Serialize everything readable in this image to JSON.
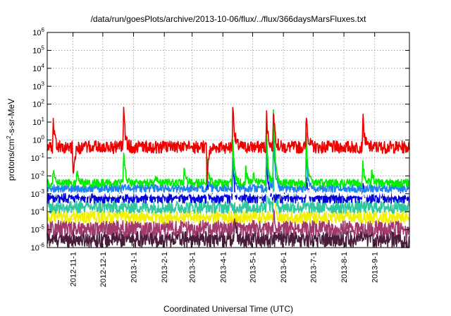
{
  "chart_data": {
    "type": "line",
    "title": "/data/run/goesPlots/archive/2013-10-06/flux/../flux/366daysMarsFluxes.txt",
    "xlabel": "Coordinated Universal Time (UTC)",
    "ylabel": {
      "pre": "protons/cm",
      "sup": "2",
      "post": "-s-sr-MeV"
    },
    "yscale": "log",
    "ylim": [
      1e-06,
      1000000.0
    ],
    "yticks": [
      {
        "base": "10",
        "exp": "-6"
      },
      {
        "base": "10",
        "exp": "-5"
      },
      {
        "base": "10",
        "exp": "-4"
      },
      {
        "base": "10",
        "exp": "-3"
      },
      {
        "base": "10",
        "exp": "-2"
      },
      {
        "base": "10",
        "exp": "-1"
      },
      {
        "base": "10",
        "exp": "0"
      },
      {
        "base": "10",
        "exp": "1"
      },
      {
        "base": "10",
        "exp": "2"
      },
      {
        "base": "10",
        "exp": "3"
      },
      {
        "base": "10",
        "exp": "4"
      },
      {
        "base": "10",
        "exp": "5"
      },
      {
        "base": "10",
        "exp": "6"
      }
    ],
    "xlim": [
      "2012-10-06",
      "2013-10-06"
    ],
    "xticks": [
      "2012-11-1",
      "2012-12-1",
      "2013-1-1",
      "2013-2-1",
      "2013-3-1",
      "2013-4-1",
      "2013-5-1",
      "2013-6-1",
      "2013-7-1",
      "2013-8-1",
      "2013-9-1"
    ],
    "grid": true,
    "series": [
      {
        "color": "#4a1e3a",
        "baseline": 3e-06,
        "noise": 0.45,
        "late_drop": 0.3,
        "events": [
          {
            "date": "2013-04-13",
            "peak": 8e-05
          },
          {
            "date": "2013-05-17",
            "peak": 1.5e-06
          }
        ]
      },
      {
        "color": "#a23a6e",
        "baseline": 1.2e-05,
        "noise": 0.45,
        "late_drop": 0.3,
        "events": [
          {
            "date": "2013-04-13",
            "peak": 0.0003
          },
          {
            "date": "2013-05-22",
            "peak": 0.0001
          }
        ]
      },
      {
        "color": "#f2f200",
        "baseline": 5e-05,
        "noise": 0.35,
        "events": [
          {
            "date": "2013-05-22",
            "peak": 0.01
          }
        ]
      },
      {
        "color": "#2ec7a0",
        "baseline": 0.00018,
        "noise": 0.35,
        "events": [
          {
            "date": "2013-05-15",
            "peak": 0.004
          },
          {
            "date": "2013-05-22",
            "peak": 0.005
          }
        ]
      },
      {
        "color": "#0000dd",
        "baseline": 0.0006,
        "noise": 0.3,
        "events": [
          {
            "date": "2013-03-16",
            "peak": 0.005
          },
          {
            "date": "2013-04-11",
            "peak": 0.05
          },
          {
            "date": "2013-05-15",
            "peak": 0.08
          },
          {
            "date": "2013-06-24",
            "peak": 0.01
          },
          {
            "date": "2013-08-20",
            "peak": 0.004
          }
        ]
      },
      {
        "color": "#ffffff",
        "baseline": 0.0011,
        "noise": 0.22,
        "events": []
      },
      {
        "color": "#1e82f0",
        "baseline": 0.002,
        "noise": 0.22,
        "events": [
          {
            "date": "2013-03-16",
            "peak": 0.01
          },
          {
            "date": "2013-04-11",
            "peak": 0.2
          },
          {
            "date": "2013-05-15",
            "peak": 0.5
          },
          {
            "date": "2013-05-22",
            "peak": 3.0
          },
          {
            "date": "2013-06-24",
            "peak": 0.2
          }
        ]
      },
      {
        "color": "#00ee00",
        "baseline": 0.004,
        "noise": 0.22,
        "events": [
          {
            "date": "2012-10-12",
            "peak": 0.02
          },
          {
            "date": "2012-11-05",
            "peak": 0.03
          },
          {
            "date": "2012-12-22",
            "peak": 0.3
          },
          {
            "date": "2013-01-23",
            "peak": 0.01
          },
          {
            "date": "2013-02-21",
            "peak": 0.05
          },
          {
            "date": "2013-03-16",
            "peak": 0.08
          },
          {
            "date": "2013-04-11",
            "peak": 1.0
          },
          {
            "date": "2013-04-24",
            "peak": 0.03
          },
          {
            "date": "2013-05-02",
            "peak": 0.02
          },
          {
            "date": "2013-05-15",
            "peak": 5.0
          },
          {
            "date": "2013-05-22",
            "peak": 100.0
          },
          {
            "date": "2013-06-24",
            "peak": 3.0
          },
          {
            "date": "2013-08-20",
            "peak": 0.08
          },
          {
            "date": "2013-08-29",
            "peak": 0.02
          }
        ]
      },
      {
        "color": "#ee0000",
        "baseline": 0.4,
        "noise": 0.35,
        "events": [
          {
            "date": "2012-10-12",
            "peak": 20.0
          },
          {
            "date": "2012-11-01",
            "peak": 0.01
          },
          {
            "date": "2012-12-22",
            "peak": 50.0
          },
          {
            "date": "2013-03-16",
            "peak": 0.008
          },
          {
            "date": "2013-04-11",
            "peak": 150.0
          },
          {
            "date": "2013-05-15",
            "peak": 30.0
          },
          {
            "date": "2013-05-22",
            "peak": 100.0
          },
          {
            "date": "2013-06-24",
            "peak": 50.0
          },
          {
            "date": "2013-08-20",
            "peak": 30.0
          }
        ]
      }
    ]
  }
}
